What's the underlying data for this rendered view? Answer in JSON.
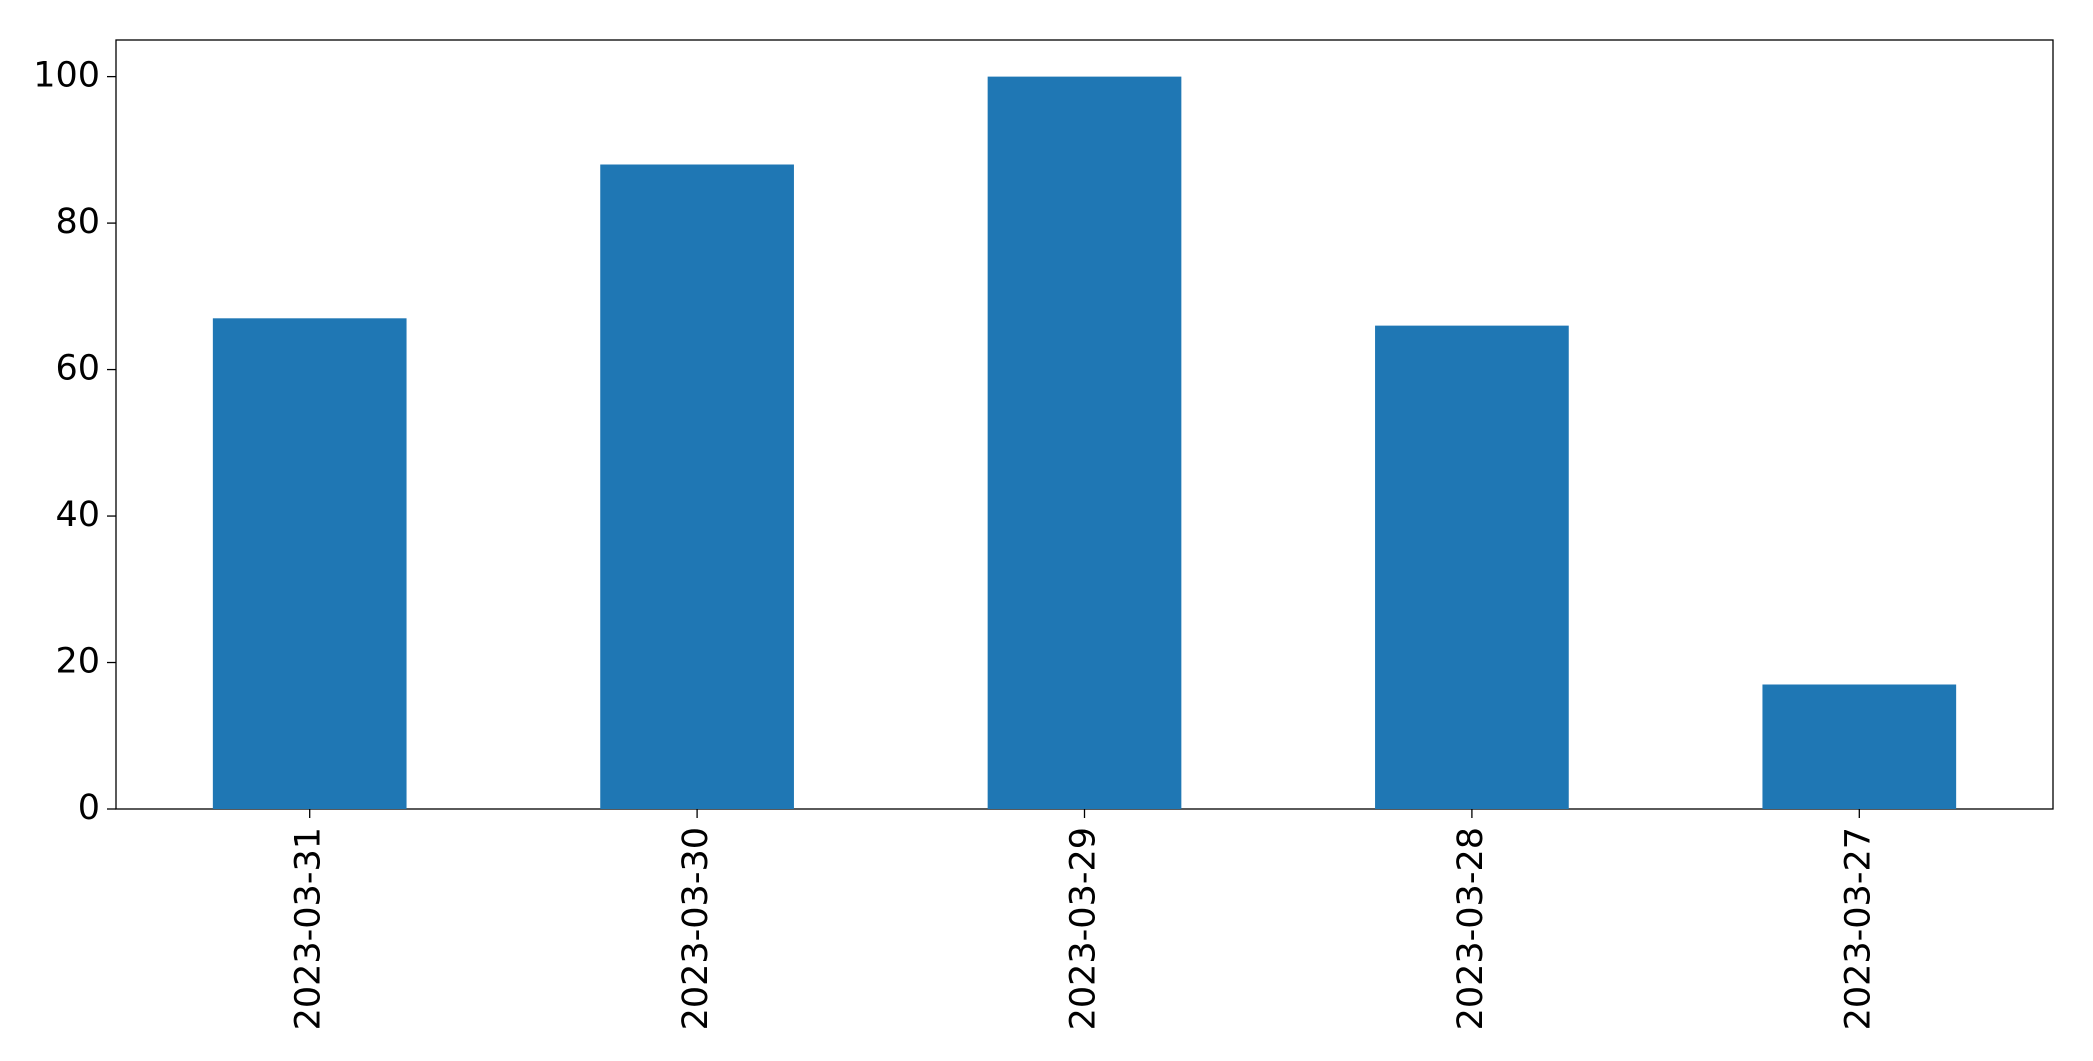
{
  "chart_data": {
    "type": "bar",
    "categories": [
      "2023-03-31",
      "2023-03-30",
      "2023-03-29",
      "2023-03-28",
      "2023-03-27"
    ],
    "values": [
      67,
      88,
      100,
      66,
      17
    ],
    "color": "#1f77b4",
    "ylim": [
      0,
      105
    ],
    "yticks": [
      0,
      20,
      40,
      60,
      80,
      100
    ],
    "grid": false
  }
}
